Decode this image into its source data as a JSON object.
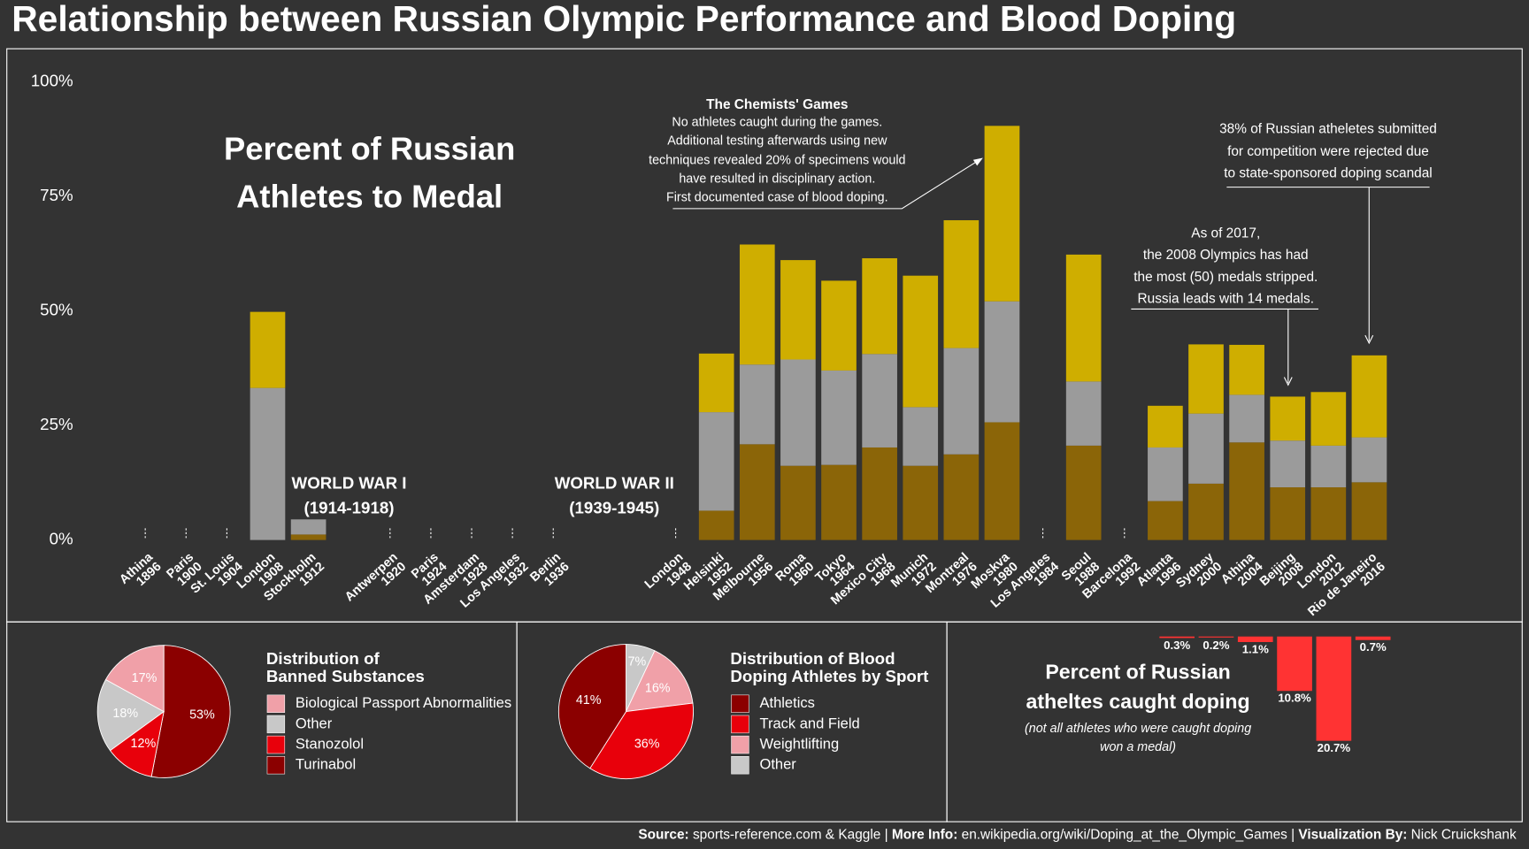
{
  "title": "Relationship between Russian Olympic Performance and Blood Doping",
  "footer": [
    {
      "label": "Source:",
      "text": "sports-reference.com & Kaggle |"
    },
    {
      "label": "More Info:",
      "text": "en.wikipedia.org/wiki/Doping_at_the_Olympic_Games |"
    },
    {
      "label": "Visualization By:",
      "text": "Nick Cruickshank"
    }
  ],
  "chart_data": [
    {
      "type": "stacked-bar",
      "title": [
        "Percent of Russian",
        "Athletes to Medal"
      ],
      "x": [
        1896,
        1900,
        1904,
        1908,
        1912,
        1920,
        1924,
        1928,
        1932,
        1936,
        1948,
        1952,
        1956,
        1960,
        1964,
        1968,
        1972,
        1976,
        1980,
        1984,
        1988,
        1992,
        1996,
        2000,
        2004,
        2008,
        2012,
        2016
      ],
      "cities": [
        "Athina",
        "Paris",
        "St. Louis",
        "London",
        "Stockholm",
        "Antwerpen",
        "Paris",
        "Amsterdam",
        "Los Angeles",
        "Berlin",
        "London",
        "Helsinki",
        "Melbourne",
        "Roma",
        "Tokyo",
        "Mexico City",
        "Munich",
        "Montreal",
        "Moskva",
        "Los Angeles",
        "Seoul",
        "Barcelona",
        "Atlanta",
        "Sydney",
        "Athina",
        "Beijing",
        "London",
        "Rio de Janeiro"
      ],
      "series": [
        {
          "color": "#8b6508",
          "values": [
            null,
            null,
            null,
            0,
            1.2,
            null,
            null,
            null,
            null,
            null,
            null,
            6.4,
            20.9,
            16.2,
            16.4,
            20.2,
            16.2,
            18.7,
            25.7,
            null,
            20.6,
            null,
            8.5,
            12.3,
            21.3,
            11.5,
            11.5,
            12.6
          ]
        },
        {
          "color": "#9b9b9b",
          "values": [
            null,
            null,
            null,
            33.2,
            3.3,
            null,
            null,
            null,
            null,
            null,
            null,
            21.5,
            17.4,
            23.2,
            20.6,
            20.4,
            12.8,
            23.2,
            26.4,
            null,
            14.0,
            null,
            11.7,
            15.3,
            10.4,
            10.2,
            9.1,
            9.8
          ]
        },
        {
          "color": "#cfae00",
          "values": [
            null,
            null,
            null,
            16.6,
            0,
            null,
            null,
            null,
            null,
            null,
            null,
            12.8,
            26.2,
            21.7,
            19.6,
            20.9,
            28.7,
            27.9,
            38.3,
            null,
            27.7,
            null,
            9.1,
            15.1,
            10.9,
            9.6,
            11.7,
            17.9
          ]
        }
      ],
      "xlim": [
        1890,
        2030
      ],
      "ylim": [
        0,
        100
      ],
      "yticks": [
        {
          "value": 0,
          "label": "0%"
        },
        {
          "value": 25,
          "label": "25%"
        },
        {
          "value": 50,
          "label": "50%"
        },
        {
          "value": 75,
          "label": "75%"
        },
        {
          "value": 100,
          "label": "100%"
        }
      ],
      "annotations": {
        "ww1": [
          "WORLD WAR I",
          "(1914-1918)"
        ],
        "ww2": [
          "WORLD WAR II",
          "(1939-1945)"
        ],
        "chemists_title": "The Chemists' Games",
        "chemists": [
          "No athletes caught during the games.",
          "Additional testing afterwards using new",
          "techniques revealed 20% of specimens would",
          "have resulted in disciplinary action.",
          "First documented case of blood doping."
        ],
        "rio": [
          "38% of Russian atheletes submitted",
          "for competition were rejected due",
          "to state-sponsored doping scandal"
        ],
        "beijing": [
          "As of 2017,",
          "the 2008 Olympics has had",
          "the most (50) medals stripped.",
          "Russia leads with 14 medals."
        ]
      }
    },
    {
      "type": "pie",
      "title": [
        "Distribution of",
        "Banned Substances"
      ],
      "categories": [
        "Biological Passport Abnormalities",
        "Other",
        "Stanozolol",
        "Turinabol"
      ],
      "values": [
        17,
        18,
        12,
        53
      ],
      "value_labels": [
        "17%",
        "18%",
        "12%",
        "53%"
      ],
      "colors": [
        "#f0a0a8",
        "#c8c8c8",
        "#e8000b",
        "#8b0000"
      ]
    },
    {
      "type": "pie",
      "title": [
        "Distribution of Blood",
        "Doping Athletes by Sport"
      ],
      "categories": [
        "Athletics",
        "Track and Field",
        "Weightlifting",
        "Other"
      ],
      "values": [
        41,
        36,
        16,
        7
      ],
      "value_labels": [
        "41%",
        "36%",
        "16%",
        "7%"
      ],
      "colors": [
        "#8b0000",
        "#e8000b",
        "#f0a0a8",
        "#c8c8c8"
      ]
    },
    {
      "type": "bar",
      "title": [
        "Percent of Russian",
        "atheltes caught doping"
      ],
      "subtitle": [
        "(not all athletes who were caught doping",
        "won a medal)"
      ],
      "values": [
        0.3,
        0.2,
        1.1,
        10.8,
        20.7,
        0.7
      ],
      "value_labels": [
        "0.3%",
        "0.2%",
        "1.1%",
        "10.8%",
        "20.7%",
        "0.7%"
      ],
      "color": "#ff3333"
    }
  ]
}
